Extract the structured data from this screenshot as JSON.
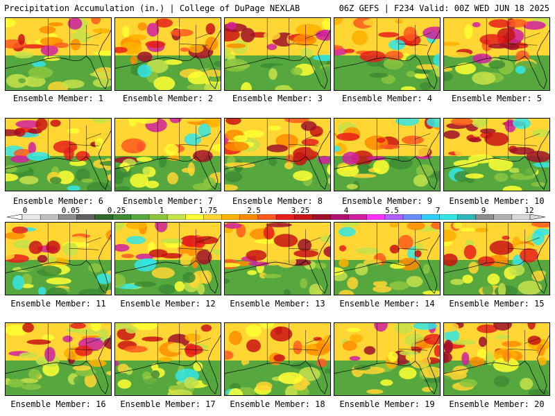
{
  "header": {
    "title_left": "Precipitation Accumulation (in.) | College of DuPage NEXLAB",
    "title_right": "06Z GEFS | F234 Valid: 00Z WED JUN 18 2025"
  },
  "colorbar": {
    "tick_labels": [
      "0",
      "0.05",
      "0.25",
      "1",
      "1.75",
      "2.5",
      "3.25",
      "4",
      "5.5",
      "7",
      "9",
      "12"
    ],
    "colors": [
      "#e8e8e8",
      "#bfbfbf",
      "#8c8c8c",
      "#5f5f5f",
      "#2e6b2b",
      "#3d8c35",
      "#56a83e",
      "#8cc63f",
      "#c6e24a",
      "#ffff33",
      "#ffd633",
      "#ffb000",
      "#ff8c00",
      "#ff5a1f",
      "#e8201c",
      "#c81414",
      "#a0102a",
      "#b01070",
      "#d020a0",
      "#ff33ff",
      "#b060ff",
      "#6a8cff",
      "#33ccff",
      "#33e6e6",
      "#30b8b8",
      "#8c8c8c",
      "#b0b0b0",
      "#d8d8d8"
    ]
  },
  "members": [
    {
      "label": "Ensemble Member: 1"
    },
    {
      "label": "Ensemble Member: 2"
    },
    {
      "label": "Ensemble Member: 3"
    },
    {
      "label": "Ensemble Member: 4"
    },
    {
      "label": "Ensemble Member: 5"
    },
    {
      "label": "Ensemble Member: 6"
    },
    {
      "label": "Ensemble Member: 7"
    },
    {
      "label": "Ensemble Member: 8"
    },
    {
      "label": "Ensemble Member: 9"
    },
    {
      "label": "Ensemble Member: 10"
    },
    {
      "label": "Ensemble Member: 11"
    },
    {
      "label": "Ensemble Member: 12"
    },
    {
      "label": "Ensemble Member: 13"
    },
    {
      "label": "Ensemble Member: 14"
    },
    {
      "label": "Ensemble Member: 15"
    },
    {
      "label": "Ensemble Member: 16"
    },
    {
      "label": "Ensemble Member: 17"
    },
    {
      "label": "Ensemble Member: 18"
    },
    {
      "label": "Ensemble Member: 19"
    },
    {
      "label": "Ensemble Member: 20"
    }
  ]
}
